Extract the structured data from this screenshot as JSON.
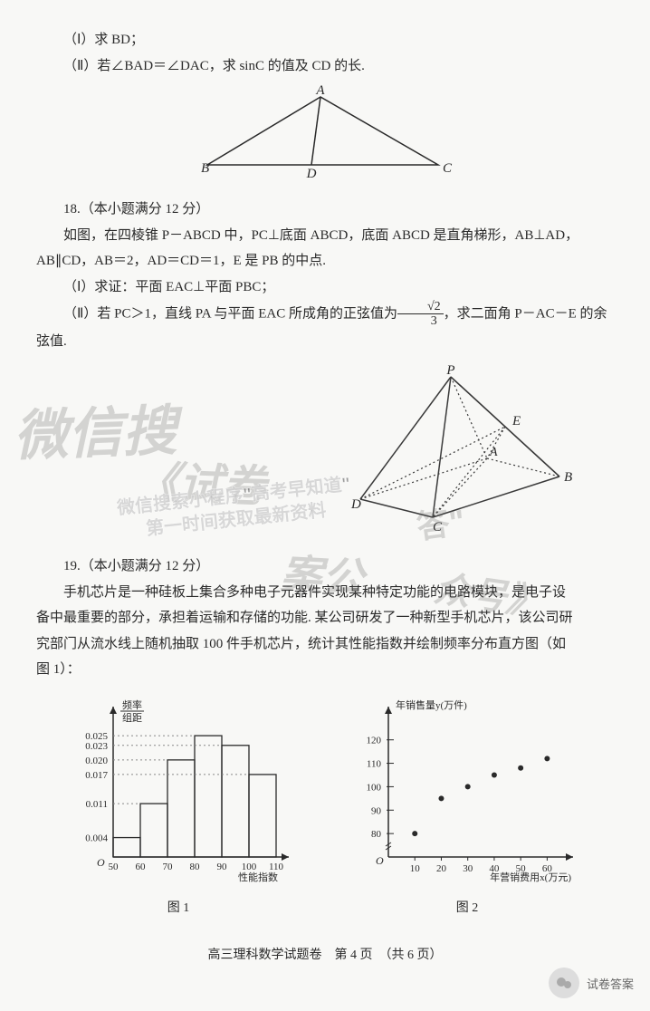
{
  "q17": {
    "part1": "（Ⅰ）求 BD；",
    "part2_prefix": "（Ⅱ）若∠BAD＝∠DAC，求 sinC 的值及 CD 的长.",
    "triangle": {
      "labels": {
        "A": "A",
        "B": "B",
        "C": "C",
        "D": "D"
      },
      "points": {
        "A": [
          140,
          10
        ],
        "B": [
          10,
          90
        ],
        "D": [
          130,
          90
        ],
        "C": [
          270,
          90
        ]
      },
      "stroke": "#2a2a2a"
    }
  },
  "q18": {
    "header": "18.（本小题满分 12 分）",
    "body1": "如图，在四棱锥 P－ABCD 中，PC⊥底面 ABCD，底面 ABCD 是直角梯形，AB⊥AD，",
    "body2": "AB∥CD，AB＝2，AD＝CD＝1，E 是 PB 的中点.",
    "part1": "（Ⅰ）求证：平面 EAC⊥平面 PBC；",
    "part2_a": "（Ⅱ）若 PC＞1，直线 PA 与平面 EAC 所成角的正弦值为",
    "part2_frac_num": "√2",
    "part2_frac_den": "3",
    "part2_b": "，求二面角 P－AC－E 的余",
    "part2_c": "弦值.",
    "pyramid": {
      "labels": {
        "P": "P",
        "A": "A",
        "B": "B",
        "C": "C",
        "D": "D",
        "E": "E"
      },
      "stroke": "#3a3a3a"
    }
  },
  "q19": {
    "header": "19.（本小题满分 12 分）",
    "body1": "手机芯片是一种硅板上集合多种电子元器件实现某种特定功能的电路模块，是电子设",
    "body2": "备中最重要的部分，承担着运输和存储的功能. 某公司研发了一种新型手机芯片，该公司研",
    "body3": "究部门从流水线上随机抽取 100 件手机芯片，统计其性能指数并绘制频率分布直方图（如",
    "body4": "图 1）：",
    "chart1": {
      "type": "histogram",
      "ylabel_top": "频率",
      "ylabel_bot": "组距",
      "xlabel": "性能指数",
      "yticks": [
        0.004,
        0.011,
        0.017,
        0.02,
        0.023,
        0.025
      ],
      "xticks": [
        50,
        60,
        70,
        80,
        90,
        100,
        110
      ],
      "bars": [
        {
          "x0": 50,
          "x1": 60,
          "y": 0.004
        },
        {
          "x0": 60,
          "x1": 70,
          "y": 0.011
        },
        {
          "x0": 70,
          "x1": 80,
          "y": 0.02
        },
        {
          "x0": 80,
          "x1": 90,
          "y": 0.025
        },
        {
          "x0": 90,
          "x1": 100,
          "y": 0.023
        },
        {
          "x0": 100,
          "x1": 110,
          "y": 0.017
        }
      ],
      "caption": "图 1",
      "stroke": "#2a2a2a",
      "grid_stroke": "#888",
      "font_size": 11
    },
    "chart2": {
      "type": "scatter",
      "ylabel": "年销售量y(万件)",
      "xlabel": "年营销费用x(万元)",
      "yticks": [
        80,
        90,
        100,
        110,
        120
      ],
      "xticks": [
        10,
        20,
        30,
        40,
        50,
        60
      ],
      "points": [
        {
          "x": 10,
          "y": 80
        },
        {
          "x": 20,
          "y": 95
        },
        {
          "x": 30,
          "y": 100
        },
        {
          "x": 40,
          "y": 105
        },
        {
          "x": 50,
          "y": 108
        },
        {
          "x": 60,
          "y": 112
        }
      ],
      "caption": "图 2",
      "stroke": "#2a2a2a",
      "font_size": 11,
      "marker_r": 3
    }
  },
  "footer": "高三理科数学试题卷　第 4 页　（共 6 页）",
  "watermarks": {
    "wm1": "微信搜",
    "wm2": "《试卷",
    "wm3": "答\"",
    "wm4a": "微信搜索小程序\"高考早知道\"",
    "wm4b": "第一时间获取最新资料",
    "wm5": "案公",
    "wm6": "众号》"
  },
  "badge": {
    "text": "试卷答案"
  }
}
